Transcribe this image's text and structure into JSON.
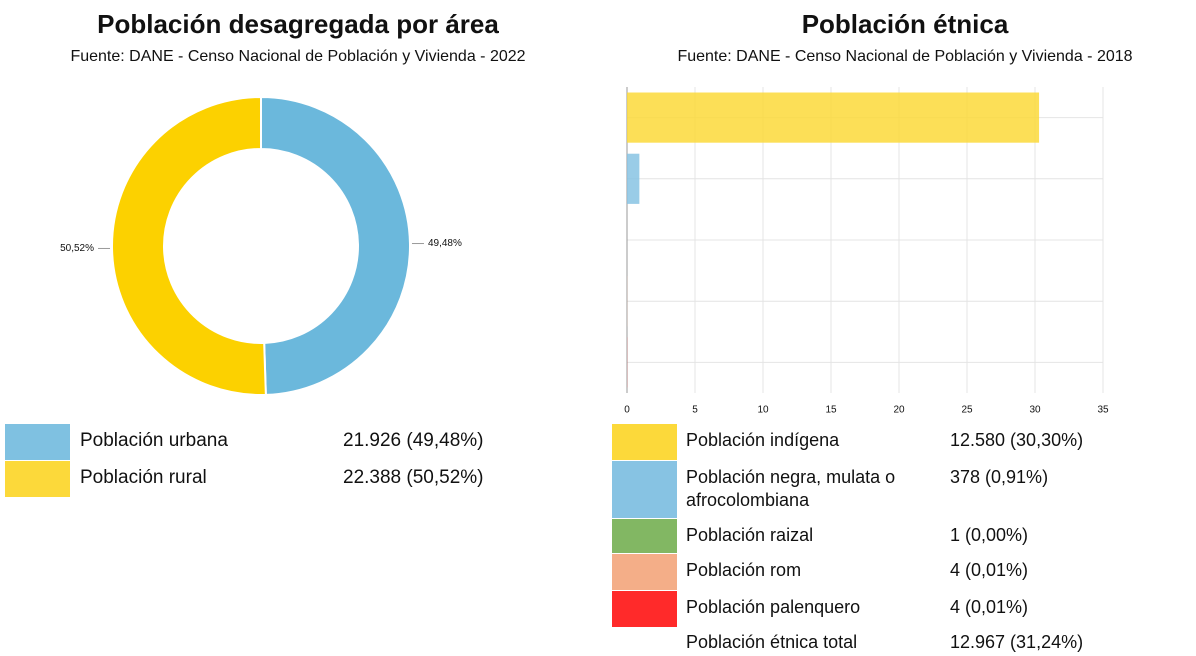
{
  "chart_data": [
    {
      "type": "donut",
      "title": "Población desagregada por área",
      "subtitle": "Fuente: DANE - Censo Nacional de Población y Vivienda - 2022",
      "categories": [
        "Población urbana",
        "Población rural"
      ],
      "values": [
        49.48,
        50.52
      ],
      "value_labels": [
        "49,48%",
        "50,52%"
      ],
      "colors": [
        "#6bb8dc",
        "#fcd100"
      ],
      "legend_colors": [
        "#7fc1e1",
        "#fcd93a"
      ],
      "legend_values": [
        "21.926 (49,48%)",
        "22.388 (50,52%)"
      ]
    },
    {
      "type": "hbar",
      "title": "Población étnica",
      "subtitle": "Fuente: DANE - Censo Nacional de Población y Vivienda - 2018",
      "categories": [
        "Población indígena",
        "Población negra, mulata o afrocolombiana",
        "Población raizal",
        "Población rom",
        "Población palenquero"
      ],
      "values": [
        30.3,
        0.91,
        0.0,
        0.01,
        0.01
      ],
      "colors": [
        "#fcd93a",
        "#87c3e3",
        "#82b763",
        "#f4ae88",
        "#ff2a2a"
      ],
      "legend_values": [
        "12.580 (30,30%)",
        "378 (0,91%)",
        "1 (0,00%)",
        "4 (0,01%)",
        "4 (0,01%)"
      ],
      "total": {
        "label": "Población étnica total",
        "value": "12.967 (31,24%)"
      },
      "xlim": [
        0,
        35
      ],
      "xticks": [
        0,
        5,
        10,
        15,
        20,
        25,
        30,
        35
      ],
      "grid": true
    }
  ]
}
